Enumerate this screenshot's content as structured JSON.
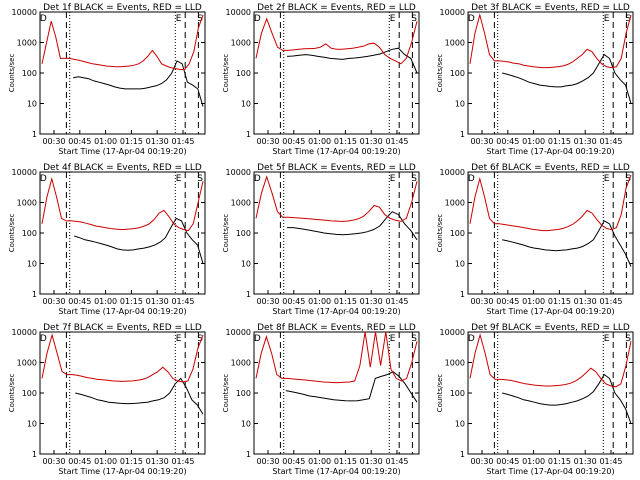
{
  "chart_data": [
    {
      "type": "line",
      "title": "Det 1f BLACK = Events, RED = LLD",
      "xlabel": "Start Time (17-Apr-04 00:19:20)",
      "ylabel": "Counts/sec",
      "yscale": "log",
      "ylim": [
        1,
        10000
      ],
      "xticks": [
        "00:30",
        "00:45",
        "01:00",
        "01:15",
        "01:30",
        "01:45"
      ],
      "yticks": [
        "1",
        "10",
        "100",
        "1000",
        "10000"
      ],
      "markers": [
        "D",
        "E",
        "S"
      ],
      "series": [
        {
          "name": "Events",
          "color": "#000000",
          "values": [
            0,
            0,
            0,
            0,
            0,
            0,
            70,
            75,
            70,
            65,
            55,
            50,
            45,
            40,
            35,
            32,
            30,
            30,
            30,
            30,
            32,
            35,
            38,
            45,
            60,
            100,
            250,
            200,
            50,
            40,
            30,
            8
          ]
        },
        {
          "name": "LLD",
          "color": "#cc0000",
          "values": [
            200,
            1000,
            5000,
            1500,
            300,
            300,
            300,
            280,
            260,
            240,
            220,
            200,
            190,
            180,
            170,
            165,
            160,
            160,
            165,
            170,
            180,
            200,
            250,
            350,
            550,
            350,
            200,
            170,
            150,
            140,
            130,
            130,
            200,
            500,
            3000,
            8000
          ]
        }
      ]
    },
    {
      "type": "line",
      "title": "Det 2f BLACK = Events, RED = LLD",
      "xlabel": "Start Time (17-Apr-04 00:19:20)",
      "ylabel": "Counts/sec",
      "yscale": "log",
      "ylim": [
        1,
        10000
      ],
      "xticks": [
        "00:30",
        "00:45",
        "01:00",
        "01:15",
        "01:30",
        "01:45"
      ],
      "yticks": [
        "1",
        "10",
        "100",
        "1000",
        "10000"
      ],
      "markers": [
        "D",
        "E",
        "S"
      ],
      "series": [
        {
          "name": "Events",
          "color": "#000000",
          "values": [
            0,
            0,
            0,
            0,
            0,
            350,
            360,
            380,
            400,
            380,
            350,
            330,
            300,
            290,
            280,
            300,
            310,
            330,
            350,
            380,
            420,
            500,
            600,
            650,
            400,
            300,
            100
          ]
        },
        {
          "name": "LLD",
          "color": "#cc0000",
          "values": [
            300,
            2000,
            6000,
            2000,
            700,
            550,
            550,
            570,
            600,
            620,
            630,
            640,
            700,
            900,
            650,
            600,
            600,
            620,
            650,
            700,
            750,
            900,
            950,
            700,
            400,
            300,
            250,
            200,
            300,
            1000,
            5000
          ]
        }
      ]
    },
    {
      "type": "line",
      "title": "Det 3f BLACK = Events, RED = LLD",
      "xlabel": "Start Time (17-Apr-04 00:19:20)",
      "ylabel": "Counts/sec",
      "yscale": "log",
      "ylim": [
        1,
        10000
      ],
      "xticks": [
        "00:30",
        "00:45",
        "01:00",
        "01:15",
        "01:30",
        "01:45"
      ],
      "yticks": [
        "1",
        "10",
        "100",
        "1000",
        "10000"
      ],
      "markers": [
        "D",
        "E",
        "S"
      ],
      "series": [
        {
          "name": "Events",
          "color": "#000000",
          "values": [
            0,
            0,
            0,
            0,
            0,
            0,
            100,
            90,
            80,
            70,
            60,
            50,
            45,
            40,
            38,
            36,
            35,
            35,
            38,
            40,
            45,
            55,
            70,
            100,
            200,
            400,
            300,
            100,
            60,
            40,
            10
          ]
        },
        {
          "name": "LLD",
          "color": "#cc0000",
          "values": [
            200,
            2000,
            8000,
            2000,
            400,
            250,
            250,
            240,
            230,
            210,
            200,
            180,
            170,
            160,
            155,
            150,
            150,
            155,
            160,
            170,
            190,
            230,
            300,
            400,
            600,
            500,
            300,
            200,
            160,
            150,
            160,
            300,
            2000,
            8000
          ]
        }
      ]
    },
    {
      "type": "line",
      "title": "Det 4f BLACK = Events, RED = LLD",
      "xlabel": "Start Time (17-Apr-04 00:19:20)",
      "ylabel": "Counts/sec",
      "yscale": "log",
      "ylim": [
        1,
        10000
      ],
      "xticks": [
        "00:30",
        "00:45",
        "01:00",
        "01:15",
        "01:30",
        "01:45"
      ],
      "yticks": [
        "1",
        "10",
        "100",
        "1000",
        "10000"
      ],
      "markers": [
        "D",
        "E",
        "S"
      ],
      "series": [
        {
          "name": "Events",
          "color": "#000000",
          "values": [
            0,
            0,
            0,
            0,
            0,
            0,
            80,
            70,
            60,
            55,
            50,
            45,
            40,
            35,
            30,
            28,
            27,
            28,
            30,
            32,
            35,
            40,
            50,
            70,
            150,
            300,
            250,
            100,
            60,
            40,
            10
          ]
        },
        {
          "name": "LLD",
          "color": "#cc0000",
          "values": [
            200,
            1500,
            6000,
            1500,
            300,
            250,
            250,
            240,
            230,
            210,
            190,
            170,
            160,
            150,
            140,
            135,
            130,
            130,
            135,
            140,
            150,
            170,
            200,
            280,
            450,
            550,
            350,
            200,
            150,
            130,
            120,
            200,
            1000,
            5000
          ]
        }
      ]
    },
    {
      "type": "line",
      "title": "Det 5f BLACK = Events, RED = LLD",
      "xlabel": "Start Time (17-Apr-04 00:19:20)",
      "ylabel": "Counts/sec",
      "yscale": "log",
      "ylim": [
        1,
        10000
      ],
      "xticks": [
        "00:30",
        "00:45",
        "01:00",
        "01:15",
        "01:30",
        "01:45"
      ],
      "yticks": [
        "1",
        "10",
        "100",
        "1000",
        "10000"
      ],
      "markers": [
        "D",
        "E",
        "S"
      ],
      "series": [
        {
          "name": "Events",
          "color": "#000000",
          "values": [
            0,
            0,
            0,
            0,
            0,
            150,
            150,
            140,
            130,
            120,
            110,
            100,
            95,
            90,
            88,
            90,
            95,
            100,
            110,
            130,
            170,
            300,
            500,
            400,
            200,
            120,
            60
          ]
        },
        {
          "name": "LLD",
          "color": "#cc0000",
          "values": [
            300,
            2000,
            7000,
            2000,
            500,
            330,
            330,
            320,
            310,
            300,
            290,
            280,
            270,
            260,
            250,
            245,
            240,
            245,
            260,
            290,
            350,
            500,
            800,
            700,
            400,
            300,
            260,
            240,
            300,
            1000,
            5000
          ]
        }
      ]
    },
    {
      "type": "line",
      "title": "Det 6f BLACK = Events, RED = LLD",
      "xlabel": "Start Time (17-Apr-04 00:19:20)",
      "ylabel": "Counts/sec",
      "yscale": "log",
      "ylim": [
        1,
        10000
      ],
      "xticks": [
        "00:30",
        "00:45",
        "01:00",
        "01:15",
        "01:30",
        "01:45"
      ],
      "yticks": [
        "1",
        "10",
        "100",
        "1000",
        "10000"
      ],
      "markers": [
        "D",
        "E",
        "S"
      ],
      "series": [
        {
          "name": "Events",
          "color": "#000000",
          "values": [
            0,
            0,
            0,
            0,
            0,
            0,
            60,
            55,
            50,
            45,
            40,
            35,
            32,
            30,
            28,
            27,
            26,
            27,
            28,
            30,
            32,
            36,
            45,
            60,
            120,
            250,
            200,
            80,
            40,
            20,
            8
          ]
        },
        {
          "name": "LLD",
          "color": "#cc0000",
          "values": [
            200,
            1500,
            6000,
            1500,
            300,
            200,
            200,
            190,
            180,
            170,
            160,
            150,
            140,
            130,
            125,
            120,
            120,
            125,
            130,
            140,
            160,
            190,
            250,
            350,
            550,
            450,
            280,
            180,
            140,
            130,
            150,
            400,
            3000,
            8000
          ]
        }
      ]
    },
    {
      "type": "line",
      "title": "Det 7f BLACK = Events, RED = LLD",
      "xlabel": "Start Time (17-Apr-04 00:19:20)",
      "ylabel": "Counts/sec",
      "yscale": "log",
      "ylim": [
        1,
        10000
      ],
      "xticks": [
        "00:30",
        "00:45",
        "01:00",
        "01:15",
        "01:30",
        "01:45"
      ],
      "yticks": [
        "1",
        "10",
        "100",
        "1000",
        "10000"
      ],
      "markers": [
        "D",
        "E",
        "S"
      ],
      "series": [
        {
          "name": "Events",
          "color": "#000000",
          "values": [
            0,
            0,
            0,
            0,
            0,
            0,
            100,
            90,
            80,
            70,
            60,
            55,
            50,
            48,
            46,
            45,
            45,
            46,
            48,
            50,
            55,
            60,
            70,
            100,
            200,
            300,
            150,
            60,
            40,
            20
          ]
        },
        {
          "name": "LLD",
          "color": "#cc0000",
          "values": [
            300,
            2000,
            8000,
            2000,
            500,
            400,
            400,
            380,
            350,
            320,
            300,
            280,
            270,
            260,
            250,
            245,
            240,
            245,
            250,
            260,
            280,
            320,
            400,
            500,
            700,
            500,
            300,
            250,
            230,
            250,
            600,
            3000,
            8000
          ]
        }
      ]
    },
    {
      "type": "line",
      "title": "Det 8f BLACK = Events, RED = LLD",
      "xlabel": "Start Time (17-Apr-04 00:19:20)",
      "ylabel": "Counts/sec",
      "yscale": "log",
      "ylim": [
        1,
        10000
      ],
      "xticks": [
        "00:30",
        "00:45",
        "01:00",
        "01:15",
        "01:30",
        "01:45"
      ],
      "yticks": [
        "1",
        "10",
        "100",
        "1000",
        "10000"
      ],
      "markers": [
        "D",
        "E",
        "S"
      ],
      "series": [
        {
          "name": "Events",
          "color": "#000000",
          "values": [
            0,
            0,
            0,
            0,
            0,
            120,
            110,
            100,
            90,
            80,
            75,
            70,
            65,
            60,
            58,
            56,
            55,
            56,
            60,
            65,
            300,
            350,
            400,
            500,
            350,
            200,
            100,
            50
          ]
        },
        {
          "name": "LLD",
          "color": "#cc0000",
          "values": [
            300,
            2000,
            7000,
            2000,
            400,
            300,
            300,
            290,
            280,
            270,
            260,
            250,
            240,
            230,
            225,
            220,
            220,
            225,
            230,
            250,
            800,
            10000,
            700,
            10000,
            800,
            10000,
            600,
            300,
            250,
            300,
            1000,
            5000
          ]
        }
      ]
    },
    {
      "type": "line",
      "title": "Det 9f BLACK = Events, RED = LLD",
      "xlabel": "Start Time (17-Apr-04 00:19:20)",
      "ylabel": "Counts/sec",
      "yscale": "log",
      "ylim": [
        1,
        10000
      ],
      "xticks": [
        "00:30",
        "00:45",
        "01:00",
        "01:15",
        "01:30",
        "01:45"
      ],
      "yticks": [
        "1",
        "10",
        "100",
        "1000",
        "10000"
      ],
      "markers": [
        "D",
        "E",
        "S"
      ],
      "series": [
        {
          "name": "Events",
          "color": "#000000",
          "values": [
            0,
            0,
            0,
            0,
            0,
            0,
            100,
            90,
            80,
            70,
            60,
            55,
            50,
            45,
            42,
            40,
            40,
            42,
            45,
            50,
            55,
            65,
            80,
            110,
            200,
            400,
            300,
            100,
            60,
            30,
            10
          ]
        },
        {
          "name": "LLD",
          "color": "#cc0000",
          "values": [
            300,
            2000,
            8000,
            2000,
            400,
            280,
            280,
            270,
            260,
            240,
            220,
            200,
            190,
            180,
            175,
            170,
            170,
            175,
            180,
            190,
            210,
            250,
            320,
            450,
            650,
            500,
            300,
            200,
            170,
            160,
            200,
            800,
            5000
          ]
        }
      ]
    }
  ]
}
